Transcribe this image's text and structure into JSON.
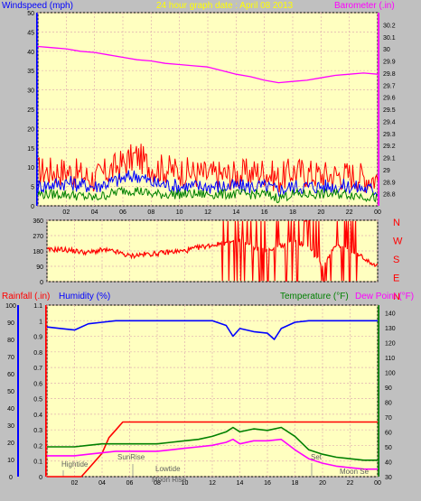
{
  "header": {
    "left": "Windspeed (mph)",
    "center": "24 hour graph date : April 08 2013",
    "right": "Barometer (.in)"
  },
  "colors": {
    "background": "#c0c0c0",
    "plot_bg": "#ffffc0",
    "grid": "#e0b0b0",
    "wind_high": "#ff0000",
    "wind_avg": "#0000ff",
    "wind_low": "#008000",
    "barometer": "#ff00ff",
    "direction": "#ff0000",
    "rain": "#ff0000",
    "humidity": "#0000ff",
    "temperature": "#008000",
    "dewpoint": "#ff00ff",
    "left_axis": "#0000ff",
    "right_axis_top": "#ff00ff",
    "right_axis_bottom": "#008000",
    "compass_text": "#ff0000"
  },
  "chart_data": [
    {
      "id": "wind_baro",
      "type": "line",
      "x_ticks": [
        "02",
        "04",
        "06",
        "08",
        "10",
        "12",
        "14",
        "16",
        "18",
        "20",
        "22",
        "00"
      ],
      "xlim": [
        0,
        24
      ],
      "ylim_left": [
        0,
        50
      ],
      "yticks_left": [
        "0",
        "5",
        "10",
        "15",
        "20",
        "25",
        "30",
        "35",
        "40",
        "45",
        "50"
      ],
      "ylim_right": [
        28.7,
        30.3
      ],
      "yticks_right": [
        "28.8",
        "28.9",
        "29",
        "29.1",
        "29.2",
        "29.3",
        "29.4",
        "29.5",
        "29.6",
        "29.7",
        "29.8",
        "29.9",
        "30",
        "30.1",
        "30.2"
      ],
      "series": [
        {
          "role": "high",
          "axis": "left",
          "x": [
            0,
            2,
            4,
            6,
            7,
            8,
            10,
            12,
            14,
            16,
            17,
            18,
            20,
            22,
            24
          ],
          "values": [
            9,
            9,
            7,
            11,
            13,
            10,
            9,
            8,
            8,
            9,
            7,
            9,
            8,
            8,
            7
          ]
        },
        {
          "role": "avg",
          "axis": "left",
          "x": [
            0,
            2,
            4,
            6,
            7,
            8,
            10,
            12,
            14,
            16,
            17,
            18,
            20,
            22,
            24
          ],
          "values": [
            5,
            6,
            5,
            7,
            8,
            6,
            5,
            5,
            5,
            5,
            4,
            5,
            5,
            5,
            4
          ]
        },
        {
          "role": "low",
          "axis": "left",
          "x": [
            0,
            2,
            4,
            6,
            7,
            8,
            10,
            12,
            14,
            16,
            17,
            18,
            20,
            22,
            24
          ],
          "values": [
            3,
            3,
            2,
            4,
            4,
            3,
            3,
            3,
            3,
            3,
            2,
            3,
            3,
            3,
            2
          ]
        },
        {
          "role": "barometer",
          "axis": "right",
          "x": [
            0,
            1,
            2,
            3,
            4,
            5,
            6,
            7,
            8,
            9,
            10,
            11,
            12,
            13,
            14,
            15,
            16,
            17,
            18,
            19,
            20,
            21,
            22,
            23,
            24
          ],
          "values": [
            30.02,
            30.01,
            30.0,
            29.98,
            29.97,
            29.95,
            29.93,
            29.91,
            29.9,
            29.88,
            29.87,
            29.86,
            29.85,
            29.82,
            29.79,
            29.77,
            29.74,
            29.72,
            29.73,
            29.74,
            29.76,
            29.78,
            29.79,
            29.8,
            29.79
          ]
        }
      ]
    },
    {
      "id": "direction",
      "type": "line",
      "ylim": [
        0,
        360
      ],
      "yticks": [
        "0",
        "90",
        "180",
        "270",
        "360"
      ],
      "compass_labels": [
        "N",
        "W",
        "S",
        "E",
        "N"
      ],
      "series": [
        {
          "role": "direction",
          "x": [
            0,
            1,
            2,
            3,
            4,
            5,
            6,
            7,
            8,
            9,
            10,
            11,
            12,
            13,
            14,
            15,
            16,
            17,
            18,
            19,
            20,
            21,
            22,
            23,
            24
          ],
          "values": [
            185,
            190,
            180,
            170,
            185,
            175,
            150,
            160,
            165,
            175,
            180,
            200,
            215,
            225,
            235,
            200,
            180,
            210,
            240,
            200,
            100,
            220,
            180,
            140,
            90
          ]
        }
      ]
    },
    {
      "id": "rain_hum_temp",
      "type": "line",
      "header_left": [
        "Rainfall (.in)",
        "Humidity (%)"
      ],
      "header_right": [
        "Temperature (°F)",
        "Dew Point (°F)"
      ],
      "ylim_left": [
        0,
        1.1
      ],
      "yticks_left": [
        "0",
        "0.1",
        "0.2",
        "0.3",
        "0.4",
        "0.5",
        "0.6",
        "0.7",
        "0.8",
        "0.9",
        "1",
        "1.1"
      ],
      "yticks_humidity": [
        "0",
        "10",
        "20",
        "30",
        "40",
        "50",
        "60",
        "70",
        "80",
        "90",
        "100"
      ],
      "ylim_right": [
        30,
        145
      ],
      "yticks_right": [
        "30",
        "40",
        "50",
        "60",
        "70",
        "80",
        "90",
        "100",
        "110",
        "120",
        "130",
        "140"
      ],
      "annotations": [
        "Hightide",
        "SunRise",
        "Lowtide",
        "Moon Rise",
        "Moon Se",
        "Set"
      ],
      "series": [
        {
          "role": "rainfall",
          "x": [
            0,
            2.5,
            3,
            4,
            4.5,
            5,
            5.5,
            6,
            24
          ],
          "values": [
            0,
            0,
            0.05,
            0.15,
            0.25,
            0.3,
            0.35,
            0.35,
            0.35
          ]
        },
        {
          "role": "humidity",
          "x": [
            0,
            1,
            2,
            3,
            4,
            5,
            6,
            7,
            8,
            9,
            10,
            11,
            12,
            13,
            13.5,
            14,
            15,
            16,
            16.5,
            17,
            18,
            19,
            20,
            21,
            22,
            23,
            24
          ],
          "values": [
            96,
            95,
            94,
            98,
            99,
            100,
            100,
            100,
            100,
            100,
            100,
            100,
            100,
            97,
            90,
            95,
            93,
            92,
            88,
            95,
            99,
            100,
            100,
            100,
            100,
            100,
            100
          ]
        },
        {
          "role": "temperature",
          "x": [
            0,
            1,
            2,
            3,
            4,
            5,
            6,
            7,
            8,
            9,
            10,
            11,
            12,
            13,
            13.5,
            14,
            15,
            16,
            17,
            18,
            19,
            20,
            21,
            22,
            23,
            24
          ],
          "values": [
            50,
            50,
            50,
            51,
            52,
            52,
            52,
            52,
            52,
            53,
            54,
            55,
            57,
            60,
            63,
            60,
            62,
            61,
            63,
            57,
            48,
            45,
            43,
            42,
            41,
            41
          ]
        },
        {
          "role": "dewpoint",
          "x": [
            0,
            1,
            2,
            3,
            4,
            5,
            6,
            7,
            8,
            9,
            10,
            11,
            12,
            13,
            13.5,
            14,
            15,
            16,
            17,
            18,
            19,
            20,
            21,
            22,
            23,
            24
          ],
          "values": [
            44,
            44,
            44,
            45,
            46,
            47,
            47,
            47,
            47,
            48,
            49,
            50,
            51,
            53,
            55,
            52,
            54,
            54,
            55,
            48,
            42,
            39,
            37,
            36,
            35,
            35
          ]
        }
      ]
    }
  ]
}
